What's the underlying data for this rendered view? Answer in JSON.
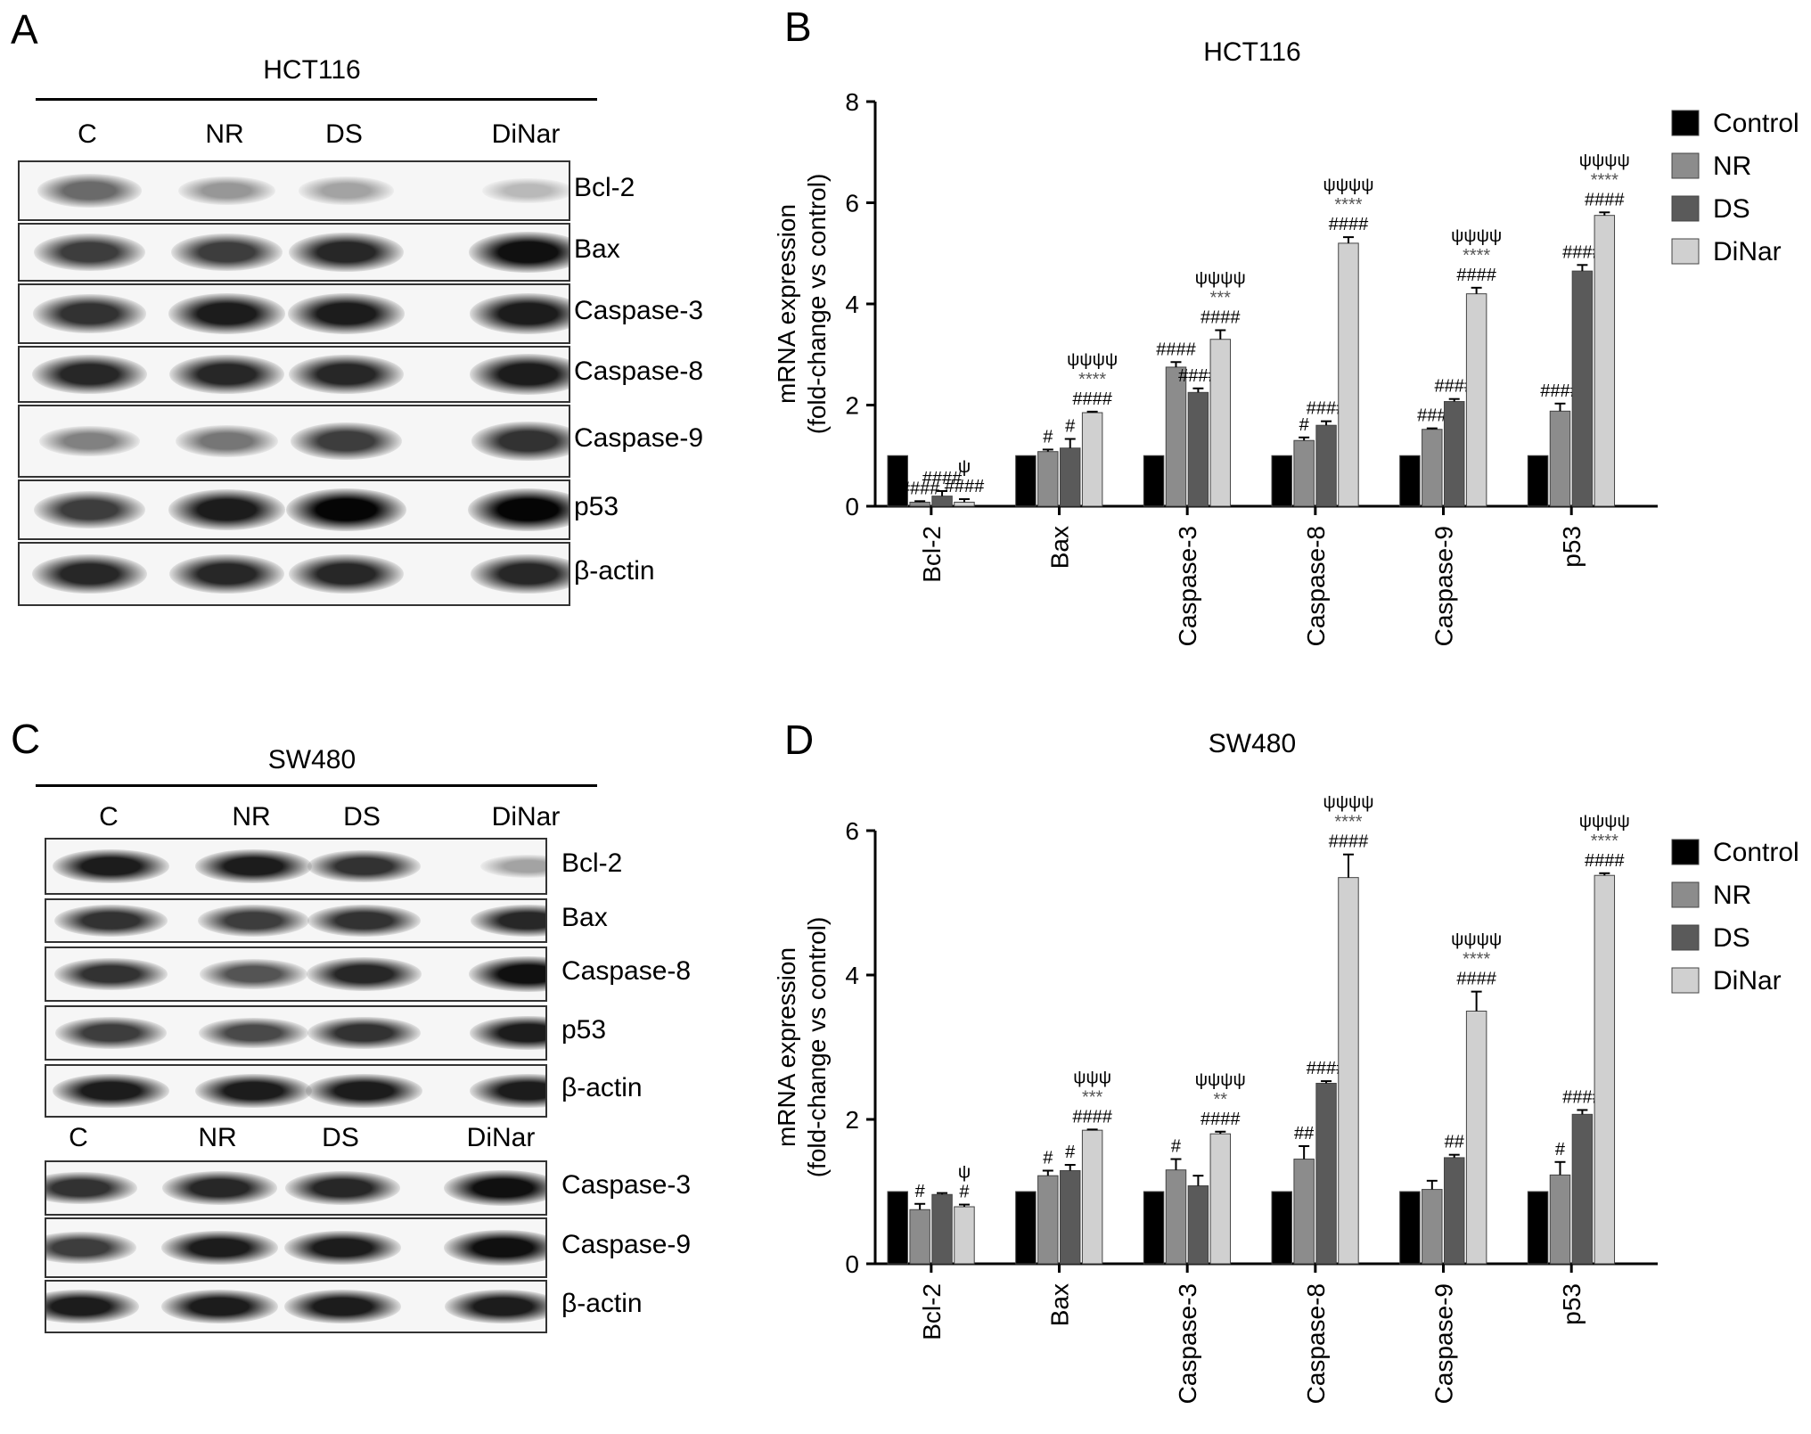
{
  "panels": {
    "A": {
      "letter": "A",
      "title": "HCT116",
      "lanes": [
        "C",
        "NR",
        "DS",
        "DiNar"
      ],
      "blots": [
        {
          "label": "Bcl-2",
          "intensity": [
            0.55,
            0.35,
            0.3,
            0.2
          ]
        },
        {
          "label": "Bax",
          "intensity": [
            0.75,
            0.75,
            0.85,
            0.95
          ]
        },
        {
          "label": "Caspase-3",
          "intensity": [
            0.8,
            0.9,
            0.9,
            0.9
          ]
        },
        {
          "label": "Caspase-8",
          "intensity": [
            0.85,
            0.85,
            0.85,
            0.9
          ]
        },
        {
          "label": "Caspase-9",
          "intensity": [
            0.45,
            0.5,
            0.75,
            0.8
          ]
        },
        {
          "label": "p53",
          "intensity": [
            0.75,
            0.9,
            1.0,
            1.0
          ]
        },
        {
          "label": "β-actin",
          "intensity": [
            0.85,
            0.85,
            0.85,
            0.85
          ]
        }
      ]
    },
    "C": {
      "letter": "C",
      "title": "SW480",
      "lanes": [
        "C",
        "NR",
        "DS",
        "DiNar"
      ],
      "blots": [
        {
          "label": "Bcl-2",
          "intensity": [
            0.9,
            0.9,
            0.8,
            0.3
          ]
        },
        {
          "label": "Bax",
          "intensity": [
            0.8,
            0.75,
            0.8,
            0.85
          ]
        },
        {
          "label": "Caspase-8",
          "intensity": [
            0.8,
            0.65,
            0.85,
            0.95
          ]
        },
        {
          "label": "p53",
          "intensity": [
            0.75,
            0.7,
            0.8,
            0.9
          ]
        },
        {
          "label": "β-actin",
          "intensity": [
            0.9,
            0.9,
            0.9,
            0.9
          ]
        }
      ],
      "lanes2": [
        "C",
        "NR",
        "DS",
        "DiNar"
      ],
      "blots2": [
        {
          "label": "Caspase-3",
          "intensity": [
            0.8,
            0.85,
            0.85,
            0.95
          ]
        },
        {
          "label": "Caspase-9",
          "intensity": [
            0.75,
            0.9,
            0.9,
            0.95
          ]
        },
        {
          "label": "β-actin",
          "intensity": [
            0.9,
            0.9,
            0.9,
            0.9
          ]
        }
      ]
    }
  },
  "chart_data": [
    {
      "panel": "B",
      "type": "bar",
      "title": "HCT116",
      "xlabel": "",
      "ylabel": "mRNA expression\n(fold-change vs control)",
      "ylim": [
        0,
        8
      ],
      "yticks": [
        0,
        2,
        4,
        6,
        8
      ],
      "categories": [
        "Bcl-2",
        "Bax",
        "Caspase-3",
        "Caspase-8",
        "Caspase-9",
        "p53"
      ],
      "series": [
        {
          "name": "Control",
          "color": "#000000",
          "values": [
            1.0,
            1.0,
            1.0,
            1.0,
            1.0,
            1.0
          ],
          "errors": [
            0,
            0,
            0,
            0,
            0,
            0
          ]
        },
        {
          "name": "NR",
          "color": "#8c8c8c",
          "values": [
            0.08,
            1.08,
            2.75,
            1.3,
            1.52,
            1.88
          ],
          "errors": [
            0.02,
            0.04,
            0.1,
            0.06,
            0.02,
            0.15
          ]
        },
        {
          "name": "DS",
          "color": "#5a5a5a",
          "values": [
            0.2,
            1.15,
            2.25,
            1.6,
            2.07,
            4.65
          ],
          "errors": [
            0.1,
            0.18,
            0.08,
            0.08,
            0.05,
            0.12
          ]
        },
        {
          "name": "DiNar",
          "color": "#d0d0d0",
          "values": [
            0.08,
            1.85,
            3.3,
            5.2,
            4.2,
            5.75
          ],
          "errors": [
            0.06,
            0.02,
            0.18,
            0.12,
            0.12,
            0.06
          ]
        }
      ],
      "annotations": [
        [
          [],
          [
            "####"
          ],
          [
            "####"
          ],
          [
            "####",
            "ψ"
          ]
        ],
        [
          [],
          [
            "#"
          ],
          [
            "#"
          ],
          [
            "####",
            "****",
            "ψψψψ"
          ]
        ],
        [
          [],
          [
            "####"
          ],
          [
            "####"
          ],
          [
            "####",
            "***",
            "ψψψψ"
          ]
        ],
        [
          [],
          [
            "#"
          ],
          [
            "####"
          ],
          [
            "####",
            "****",
            "ψψψψ"
          ]
        ],
        [
          [],
          [
            "###"
          ],
          [
            "####"
          ],
          [
            "####",
            "****",
            "ψψψψ"
          ]
        ],
        [
          [],
          [
            "####"
          ],
          [
            "####"
          ],
          [
            "####",
            "****",
            "ψψψψ"
          ]
        ]
      ],
      "legend_position": "right"
    },
    {
      "panel": "D",
      "type": "bar",
      "title": "SW480",
      "xlabel": "",
      "ylabel": "mRNA expression\n(fold-change vs control)",
      "ylim": [
        0,
        6
      ],
      "yticks": [
        0,
        2,
        4,
        6
      ],
      "categories": [
        "Bcl-2",
        "Bax",
        "Caspase-3",
        "Caspase-8",
        "Caspase-9",
        "p53"
      ],
      "series": [
        {
          "name": "Control",
          "color": "#000000",
          "values": [
            1.0,
            1.0,
            1.0,
            1.0,
            1.0,
            1.0
          ],
          "errors": [
            0,
            0,
            0,
            0,
            0,
            0
          ]
        },
        {
          "name": "NR",
          "color": "#8c8c8c",
          "values": [
            0.75,
            1.22,
            1.3,
            1.45,
            1.03,
            1.23
          ],
          "errors": [
            0.08,
            0.07,
            0.15,
            0.18,
            0.12,
            0.18
          ]
        },
        {
          "name": "DS",
          "color": "#5a5a5a",
          "values": [
            0.96,
            1.29,
            1.08,
            2.5,
            1.47,
            2.07
          ],
          "errors": [
            0.02,
            0.08,
            0.14,
            0.03,
            0.04,
            0.06
          ]
        },
        {
          "name": "DiNar",
          "color": "#d0d0d0",
          "values": [
            0.79,
            1.85,
            1.8,
            5.35,
            3.5,
            5.38
          ],
          "errors": [
            0.03,
            0.01,
            0.03,
            0.32,
            0.27,
            0.03
          ]
        }
      ],
      "annotations": [
        [
          [],
          [
            "#"
          ],
          [],
          [
            "#",
            "ψ"
          ]
        ],
        [
          [],
          [
            "#"
          ],
          [
            "#"
          ],
          [
            "####",
            "***",
            "ψψψ"
          ]
        ],
        [
          [],
          [
            "#"
          ],
          [],
          [
            "####",
            "**",
            "ψψψψ"
          ]
        ],
        [
          [],
          [
            "##"
          ],
          [
            "####"
          ],
          [
            "####",
            "****",
            "ψψψψ"
          ]
        ],
        [
          [],
          [],
          [
            "##"
          ],
          [
            "####",
            "****",
            "ψψψψ"
          ]
        ],
        [
          [],
          [
            "#"
          ],
          [
            "####"
          ],
          [
            "####",
            "****",
            "ψψψψ"
          ]
        ]
      ],
      "legend_position": "right"
    }
  ]
}
